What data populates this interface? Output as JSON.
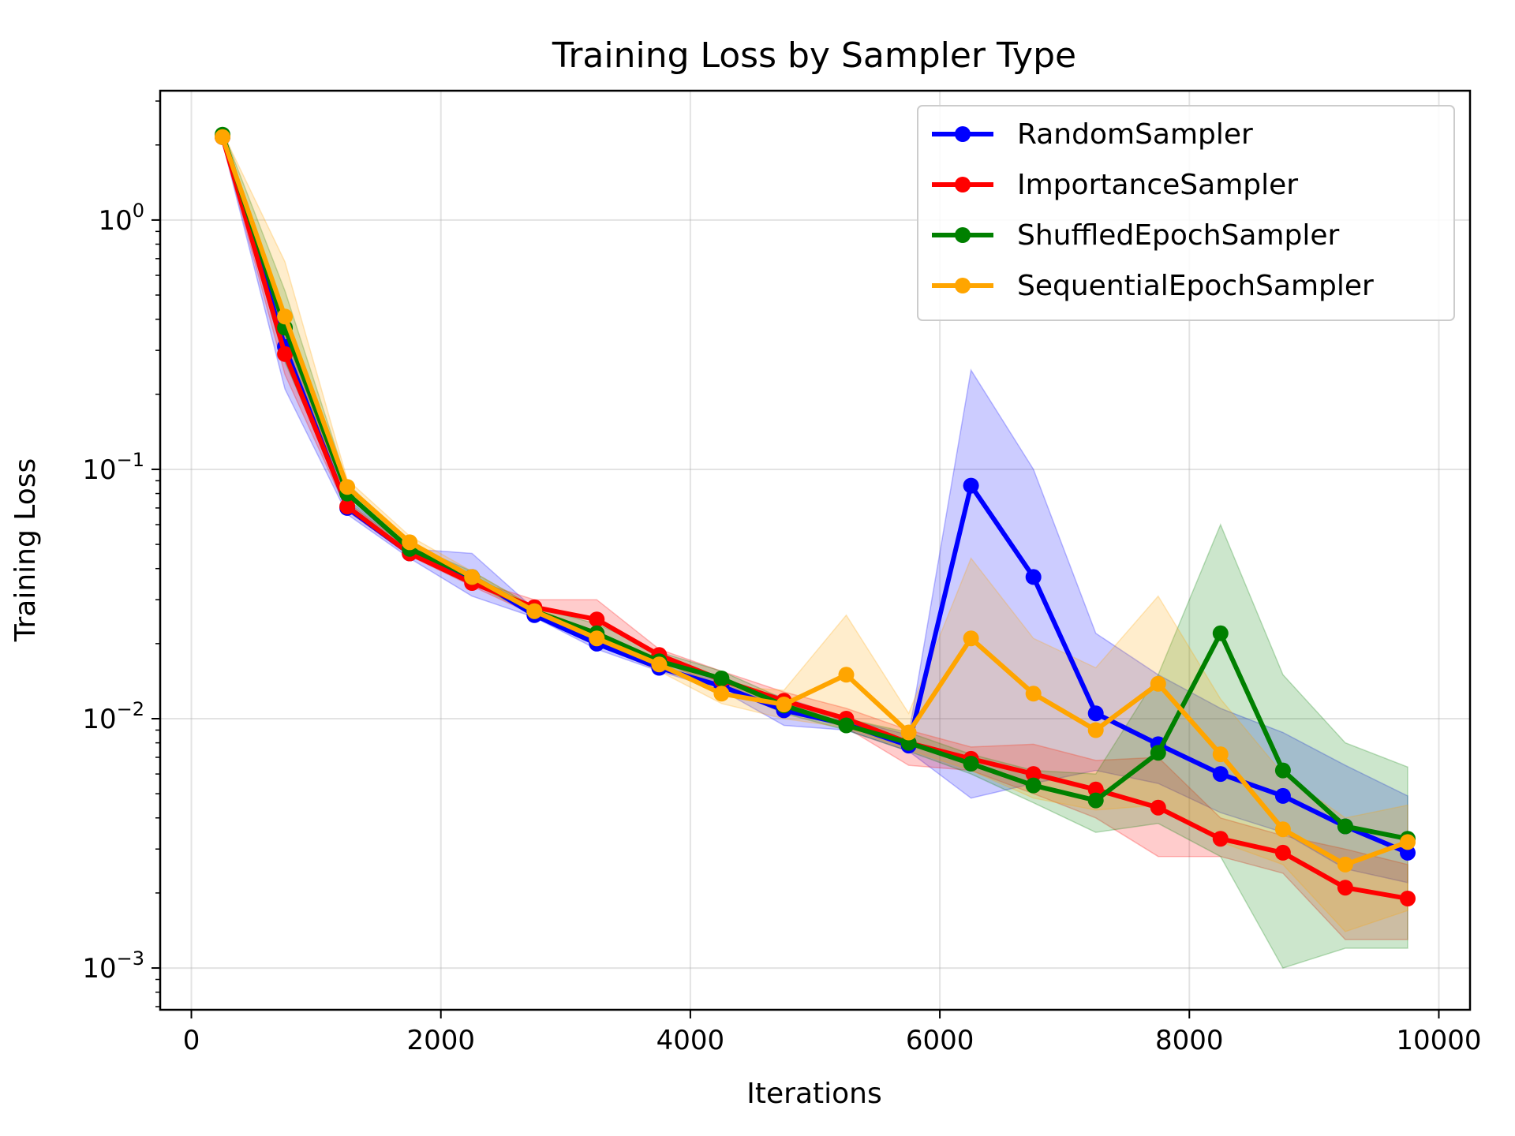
{
  "chart_data": {
    "type": "line",
    "title": "Training Loss by Sampler Type",
    "xlabel": "Iterations",
    "ylabel": "Training Loss",
    "xlim": [
      -250,
      10250
    ],
    "ylim": [
      0.00068,
      3.3
    ],
    "yscale": "log",
    "grid": true,
    "legend_position": "top-right",
    "x_ticks": [
      0,
      2000,
      4000,
      6000,
      8000,
      10000
    ],
    "x_tick_labels": [
      "0",
      "2000",
      "4000",
      "6000",
      "8000",
      "10000"
    ],
    "y_ticks": [
      {
        "value": 1,
        "base": "10",
        "exp": "0"
      },
      {
        "value": 0.1,
        "base": "10",
        "exp": "−1"
      },
      {
        "value": 0.01,
        "base": "10",
        "exp": "−2"
      },
      {
        "value": 0.001,
        "base": "10",
        "exp": "−3"
      }
    ],
    "x": [
      250,
      750,
      1250,
      1750,
      2250,
      2750,
      3250,
      3750,
      4250,
      4750,
      5250,
      5750,
      6250,
      6750,
      7250,
      7750,
      8250,
      8750,
      9250,
      9750
    ],
    "series": [
      {
        "name": "RandomSampler",
        "color": "#0000ff",
        "values": [
          2.15,
          0.31,
          0.07,
          0.046,
          0.037,
          0.026,
          0.02,
          0.016,
          0.0135,
          0.0108,
          0.0095,
          0.0078,
          0.086,
          0.037,
          0.0105,
          0.0079,
          0.006,
          0.0049,
          0.0037,
          0.0029
        ],
        "lower": [
          2.05,
          0.21,
          0.066,
          0.044,
          0.031,
          0.0255,
          0.019,
          0.0155,
          0.013,
          0.0094,
          0.009,
          0.0074,
          0.0048,
          0.0055,
          0.0062,
          0.0055,
          0.0042,
          0.0035,
          0.0025,
          0.0022
        ],
        "upper": [
          2.25,
          0.42,
          0.076,
          0.048,
          0.046,
          0.0275,
          0.021,
          0.0175,
          0.014,
          0.0122,
          0.01,
          0.0086,
          0.25,
          0.1,
          0.022,
          0.015,
          0.011,
          0.0088,
          0.0065,
          0.0049
        ]
      },
      {
        "name": "ImportanceSampler",
        "color": "#ff0000",
        "values": [
          2.15,
          0.29,
          0.071,
          0.046,
          0.035,
          0.028,
          0.025,
          0.018,
          0.0143,
          0.0118,
          0.01,
          0.008,
          0.0069,
          0.006,
          0.0052,
          0.0044,
          0.0033,
          0.0029,
          0.0021,
          0.0019
        ],
        "lower": [
          2.05,
          0.24,
          0.068,
          0.045,
          0.034,
          0.026,
          0.021,
          0.017,
          0.0135,
          0.011,
          0.0092,
          0.0065,
          0.0062,
          0.005,
          0.004,
          0.0028,
          0.0028,
          0.0024,
          0.0013,
          0.0013
        ],
        "upper": [
          2.25,
          0.35,
          0.074,
          0.048,
          0.036,
          0.03,
          0.03,
          0.019,
          0.0155,
          0.0128,
          0.011,
          0.009,
          0.0077,
          0.0079,
          0.0068,
          0.007,
          0.004,
          0.0034,
          0.003,
          0.0026
        ]
      },
      {
        "name": "ShuffledEpochSampler",
        "color": "#008000",
        "values": [
          2.2,
          0.37,
          0.08,
          0.048,
          0.037,
          0.027,
          0.022,
          0.017,
          0.0145,
          0.0113,
          0.0094,
          0.008,
          0.0066,
          0.0054,
          0.0047,
          0.0073,
          0.022,
          0.0062,
          0.0037,
          0.0033
        ],
        "lower": [
          2.1,
          0.27,
          0.072,
          0.046,
          0.035,
          0.026,
          0.02,
          0.016,
          0.0135,
          0.0105,
          0.009,
          0.0074,
          0.006,
          0.0046,
          0.0035,
          0.0038,
          0.0028,
          0.001,
          0.0012,
          0.0012
        ],
        "upper": [
          2.3,
          0.52,
          0.088,
          0.05,
          0.039,
          0.028,
          0.024,
          0.0185,
          0.0155,
          0.012,
          0.01,
          0.0088,
          0.0072,
          0.0062,
          0.006,
          0.015,
          0.06,
          0.015,
          0.008,
          0.0064
        ]
      },
      {
        "name": "SequentialEpochSampler",
        "color": "#ffa500",
        "values": [
          2.15,
          0.41,
          0.085,
          0.051,
          0.037,
          0.027,
          0.021,
          0.0165,
          0.0126,
          0.0114,
          0.015,
          0.0088,
          0.021,
          0.0126,
          0.009,
          0.0138,
          0.0072,
          0.0036,
          0.0026,
          0.0032
        ],
        "lower": [
          2.05,
          0.3,
          0.08,
          0.049,
          0.035,
          0.026,
          0.02,
          0.0155,
          0.0115,
          0.01,
          0.0092,
          0.0075,
          0.0062,
          0.0048,
          0.0043,
          0.0045,
          0.0032,
          0.0026,
          0.0014,
          0.0017
        ],
        "upper": [
          2.25,
          0.68,
          0.091,
          0.054,
          0.039,
          0.028,
          0.022,
          0.0175,
          0.0135,
          0.013,
          0.026,
          0.0105,
          0.044,
          0.021,
          0.016,
          0.031,
          0.012,
          0.006,
          0.004,
          0.0045
        ]
      }
    ]
  }
}
